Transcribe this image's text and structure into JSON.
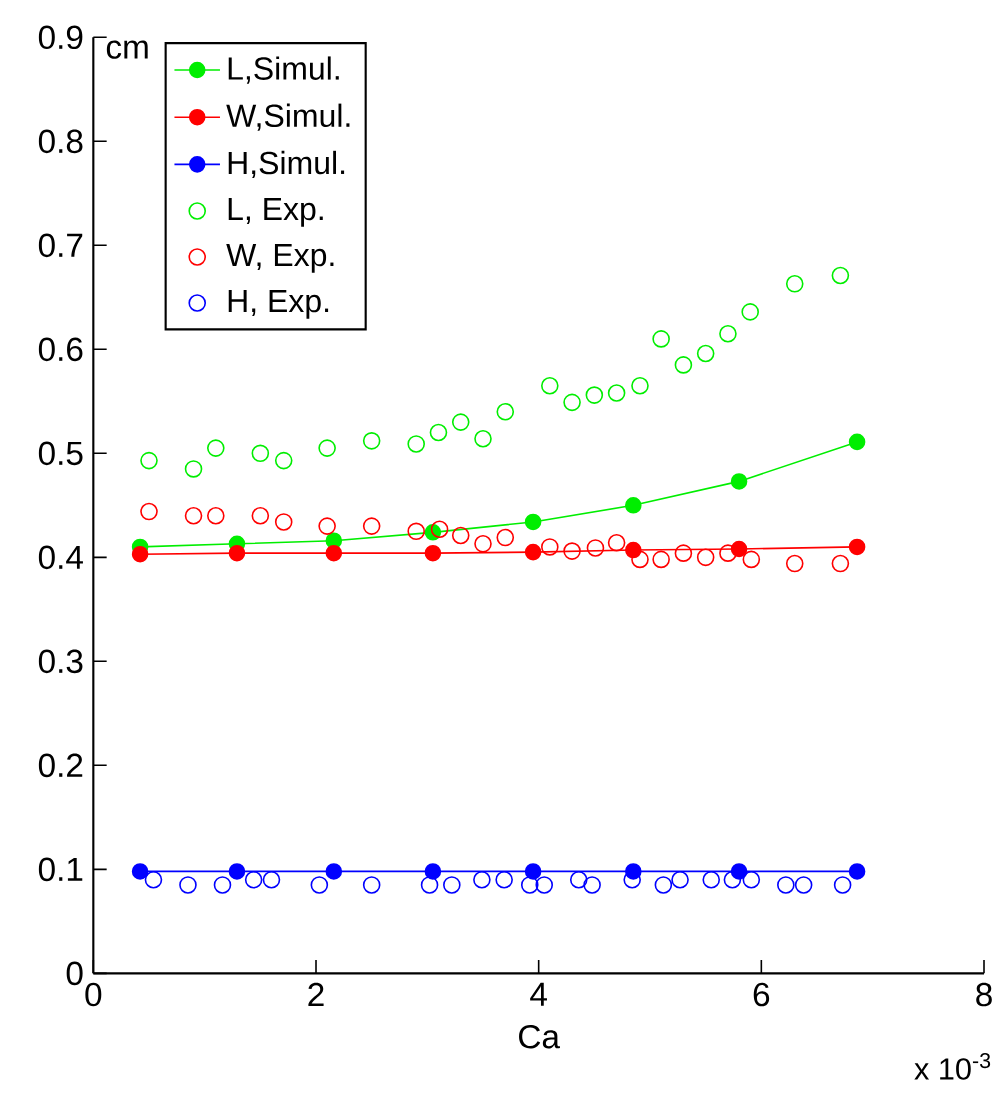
{
  "chart_data": {
    "type": "line",
    "xlabel": "Ca",
    "ylabel": "cm",
    "annotations": [
      "x 10$^{-3}$"
    ],
    "xlim": [
      0,
      8
    ],
    "xticks": [
      0,
      2,
      4,
      6,
      8
    ],
    "ylim": [
      0,
      0.9
    ],
    "yticks": [
      0,
      0.1,
      0.2,
      0.3,
      0.4,
      0.5,
      0.6,
      0.7,
      0.8,
      0.9
    ],
    "legend": "top left",
    "marker": "circle",
    "grid": false,
    "series": [
      {
        "name": "L,Simul.",
        "color": "#00ee00",
        "x": [
          0.42,
          1.29,
          2.16,
          3.05,
          3.95,
          4.85,
          5.8,
          6.86
        ],
        "values": [
          0.41,
          0.413,
          0.416,
          0.424,
          0.434,
          0.45,
          0.473,
          0.511
        ]
      },
      {
        "name": "W,Simul.",
        "color": "#ff0000",
        "x": [
          0.42,
          1.29,
          2.16,
          3.05,
          3.95,
          4.85,
          5.8,
          6.86
        ],
        "values": [
          0.403,
          0.404,
          0.404,
          0.404,
          0.405,
          0.407,
          0.408,
          0.41
        ]
      },
      {
        "name": "H,Simul.",
        "color": "#0000ff",
        "x": [
          0.42,
          1.29,
          2.16,
          3.05,
          3.95,
          4.85,
          5.8,
          6.86
        ],
        "values": [
          0.098,
          0.098,
          0.098,
          0.098,
          0.098,
          0.098,
          0.098,
          0.098
        ]
      },
      {
        "name": "L, Exp.",
        "type": "scatter",
        "color": "#00ee00",
        "x": [
          0.5,
          0.9,
          1.1,
          1.5,
          1.71,
          2.1,
          2.5,
          2.9,
          3.1,
          3.3,
          3.5,
          3.7,
          4.1,
          4.3,
          4.5,
          4.7,
          4.91,
          5.1,
          5.3,
          5.5,
          5.7,
          5.9,
          6.3,
          6.71
        ],
        "values": [
          0.493,
          0.485,
          0.505,
          0.5,
          0.493,
          0.505,
          0.512,
          0.509,
          0.52,
          0.53,
          0.514,
          0.54,
          0.565,
          0.549,
          0.556,
          0.558,
          0.565,
          0.61,
          0.585,
          0.596,
          0.615,
          0.636,
          0.663,
          0.671
        ]
      },
      {
        "name": "W, Exp.",
        "type": "scatter",
        "color": "#ff0000",
        "x": [
          0.5,
          0.9,
          1.1,
          1.5,
          1.71,
          2.1,
          2.5,
          2.9,
          3.11,
          3.3,
          3.5,
          3.7,
          4.1,
          4.3,
          4.51,
          4.7,
          4.91,
          5.1,
          5.3,
          5.5,
          5.7,
          5.91,
          6.3,
          6.71
        ],
        "values": [
          0.444,
          0.44,
          0.44,
          0.44,
          0.434,
          0.43,
          0.43,
          0.425,
          0.427,
          0.421,
          0.413,
          0.419,
          0.41,
          0.406,
          0.409,
          0.414,
          0.398,
          0.398,
          0.404,
          0.4,
          0.404,
          0.398,
          0.394,
          0.394
        ]
      },
      {
        "name": "H, Exp.",
        "type": "scatter",
        "color": "#0000ff",
        "x": [
          0.54,
          0.85,
          1.16,
          1.44,
          1.6,
          2.03,
          2.5,
          3.02,
          3.22,
          3.49,
          3.69,
          3.92,
          4.05,
          4.36,
          4.48,
          4.84,
          5.12,
          5.27,
          5.55,
          5.74,
          5.91,
          6.22,
          6.38,
          6.73
        ],
        "values": [
          0.09,
          0.085,
          0.085,
          0.09,
          0.09,
          0.085,
          0.085,
          0.085,
          0.085,
          0.09,
          0.09,
          0.085,
          0.085,
          0.09,
          0.085,
          0.09,
          0.085,
          0.09,
          0.09,
          0.09,
          0.09,
          0.085,
          0.085,
          0.085
        ]
      }
    ]
  }
}
